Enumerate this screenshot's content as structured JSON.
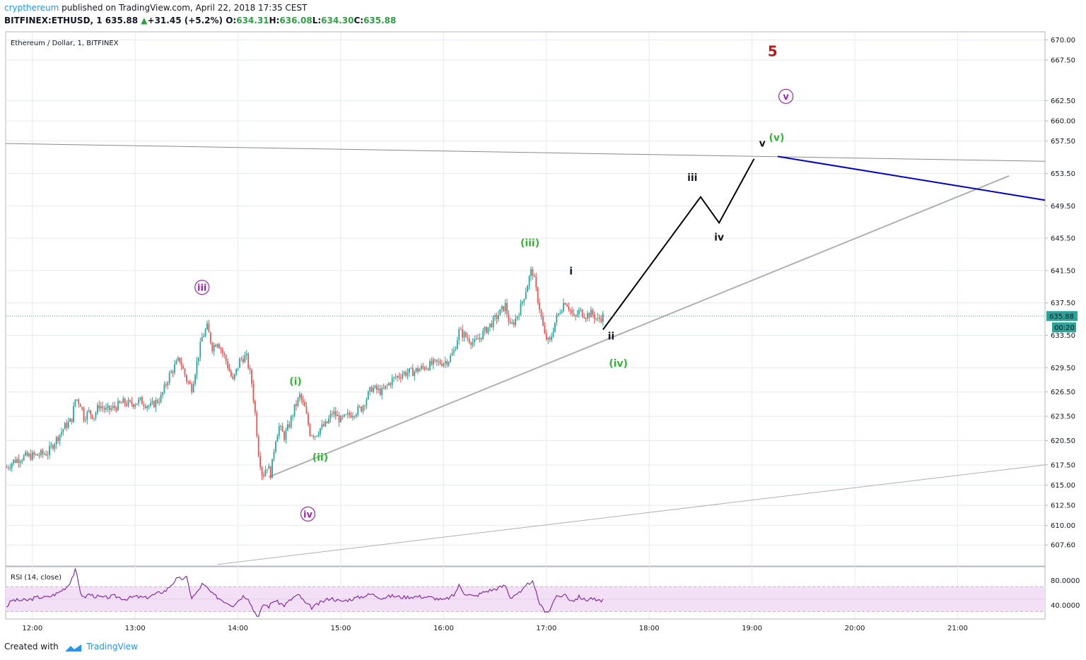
{
  "header": {
    "user": "crypthereum",
    "published_text": "published on TradingView.com, April 22, 2018 17:35 CEST",
    "symbol": "BITFINEX:ETHUSD, 1",
    "last": "635.88",
    "change": "+31.45 (+5.2%)",
    "open_label": "O:",
    "open": "634.31",
    "high_label": "H:",
    "high": "636.08",
    "low_label": "L:",
    "low": "634.30",
    "close_label": "C:",
    "close": "635.88"
  },
  "footer": {
    "created_with": "Created with",
    "brand": "TradingView"
  },
  "colors": {
    "up": "#26a69a",
    "down": "#ef5350",
    "grid": "#e6e9ef",
    "rsi_line": "#7b1fa2",
    "rsi_band": "#f3e0f7",
    "blue_line": "#0000cc",
    "trend_gray": "#b0b0b0",
    "last_price": "#26a69a",
    "wave_green": "#2eb82e",
    "wave_purple": "#9c27b0",
    "wave_red": "#b71c1c"
  },
  "chart_data": {
    "type": "candlestick",
    "title": "Ethereum / Dollar, 1, BITFINEX",
    "x_ticks": [
      "12:00",
      "13:00",
      "14:00",
      "15:00",
      "16:00",
      "17:00",
      "18:00",
      "19:00",
      "20:00",
      "21:00"
    ],
    "y_ticks": [
      "670.00",
      "667.50",
      "662.50",
      "660.00",
      "657.50",
      "653.50",
      "649.50",
      "645.50",
      "641.50",
      "637.50",
      "633.50",
      "629.50",
      "626.50",
      "623.50",
      "620.50",
      "617.50",
      "615.00",
      "612.50",
      "610.00",
      "607.60"
    ],
    "ylim": [
      605,
      671
    ],
    "xlim_hours": [
      11.74,
      21.85
    ],
    "last_price": 635.88,
    "countdown": "00:20",
    "price_path": [
      [
        11.75,
        617.2
      ],
      [
        11.82,
        618.0
      ],
      [
        11.92,
        618.5
      ],
      [
        12.05,
        618.7
      ],
      [
        12.15,
        619.0
      ],
      [
        12.25,
        621.0
      ],
      [
        12.32,
        622.3
      ],
      [
        12.38,
        623.0
      ],
      [
        12.42,
        625.8
      ],
      [
        12.47,
        625.0
      ],
      [
        12.5,
        623.4
      ],
      [
        12.55,
        624.0
      ],
      [
        12.6,
        623.5
      ],
      [
        12.65,
        624.9
      ],
      [
        12.72,
        624.2
      ],
      [
        12.8,
        624.6
      ],
      [
        12.88,
        625.2
      ],
      [
        12.95,
        625.0
      ],
      [
        13.05,
        625.4
      ],
      [
        13.15,
        624.7
      ],
      [
        13.25,
        625.8
      ],
      [
        13.33,
        628.5
      ],
      [
        13.43,
        630.6
      ],
      [
        13.5,
        628.0
      ],
      [
        13.55,
        627.0
      ],
      [
        13.6,
        630.1
      ],
      [
        13.65,
        633.2
      ],
      [
        13.7,
        634.5
      ],
      [
        13.75,
        632.0
      ],
      [
        13.8,
        632.8
      ],
      [
        13.88,
        630.5
      ],
      [
        13.95,
        627.8
      ],
      [
        14.02,
        630.5
      ],
      [
        14.08,
        630.9
      ],
      [
        14.13,
        628.0
      ],
      [
        14.17,
        623.5
      ],
      [
        14.2,
        619.0
      ],
      [
        14.24,
        616.0
      ],
      [
        14.28,
        617.5
      ],
      [
        14.32,
        616.3
      ],
      [
        14.36,
        620.5
      ],
      [
        14.4,
        622.2
      ],
      [
        14.45,
        621.0
      ],
      [
        14.5,
        622.5
      ],
      [
        14.55,
        624.5
      ],
      [
        14.6,
        626.0
      ],
      [
        14.65,
        624.5
      ],
      [
        14.7,
        621.5
      ],
      [
        14.75,
        621.2
      ],
      [
        14.8,
        622.0
      ],
      [
        14.86,
        622.5
      ],
      [
        14.92,
        624.0
      ],
      [
        15.0,
        623.0
      ],
      [
        15.1,
        623.8
      ],
      [
        15.2,
        624.5
      ],
      [
        15.3,
        627.0
      ],
      [
        15.4,
        626.5
      ],
      [
        15.5,
        628.0
      ],
      [
        15.6,
        628.8
      ],
      [
        15.7,
        629.0
      ],
      [
        15.8,
        629.5
      ],
      [
        15.9,
        630.0
      ],
      [
        16.0,
        630.2
      ],
      [
        16.05,
        630.5
      ],
      [
        16.1,
        631.5
      ],
      [
        16.15,
        634.0
      ],
      [
        16.2,
        633.5
      ],
      [
        16.3,
        632.5
      ],
      [
        16.4,
        634.0
      ],
      [
        16.5,
        635.5
      ],
      [
        16.6,
        637.2
      ],
      [
        16.65,
        634.5
      ],
      [
        16.7,
        635.5
      ],
      [
        16.75,
        637.0
      ],
      [
        16.82,
        640.0
      ],
      [
        16.86,
        641.8
      ],
      [
        16.9,
        639.0
      ],
      [
        16.94,
        636.5
      ],
      [
        16.98,
        633.5
      ],
      [
        17.03,
        632.5
      ],
      [
        17.08,
        635.0
      ],
      [
        17.13,
        636.5
      ],
      [
        17.18,
        637.8
      ],
      [
        17.22,
        637.0
      ],
      [
        17.27,
        635.5
      ],
      [
        17.32,
        636.5
      ],
      [
        17.38,
        636.0
      ],
      [
        17.44,
        636.2
      ],
      [
        17.5,
        635.4
      ],
      [
        17.55,
        635.88
      ]
    ],
    "lines": [
      {
        "name": "upper resistance",
        "from": [
          11.74,
          657.2
        ],
        "to": [
          21.85,
          655.0
        ]
      },
      {
        "name": "rising support",
        "from": [
          14.3,
          616.0
        ],
        "to": [
          21.5,
          653.2
        ]
      },
      {
        "name": "lower channel",
        "from": [
          13.8,
          605.2
        ],
        "to": [
          21.85,
          617.5
        ]
      },
      {
        "name": "blue projection",
        "from": [
          19.25,
          655.6
        ],
        "to": [
          21.85,
          650.2
        ]
      },
      {
        "name": "projection path",
        "points": [
          [
            17.55,
            634.2
          ],
          [
            18.5,
            650.6
          ],
          [
            18.68,
            647.4
          ],
          [
            19.02,
            655.3
          ]
        ]
      }
    ],
    "wave_labels": [
      {
        "text": "5",
        "x": 19.2,
        "y": 668.0,
        "color": "red",
        "size": 20
      },
      {
        "text": "v",
        "x": 19.33,
        "y": 662.6,
        "color": "purple",
        "circle": true,
        "size": 14
      },
      {
        "text": "iii",
        "x": 13.65,
        "y": 639.0,
        "color": "purple",
        "circle": true,
        "size": 14
      },
      {
        "text": "iv",
        "x": 14.68,
        "y": 611.0,
        "color": "purple",
        "circle": true,
        "size": 14
      },
      {
        "text": "(i)",
        "x": 14.56,
        "y": 627.4,
        "color": "green",
        "size": 14
      },
      {
        "text": "(ii)",
        "x": 14.8,
        "y": 618.0,
        "color": "green",
        "size": 14
      },
      {
        "text": "(iii)",
        "x": 16.84,
        "y": 644.5,
        "color": "green",
        "size": 14
      },
      {
        "text": "(iv)",
        "x": 17.7,
        "y": 629.6,
        "color": "green",
        "size": 14
      },
      {
        "text": "(v)",
        "x": 19.24,
        "y": 657.5,
        "color": "green",
        "size": 14
      },
      {
        "text": "i",
        "x": 17.24,
        "y": 641.0,
        "color": "black",
        "size": 14
      },
      {
        "text": "ii",
        "x": 17.63,
        "y": 633.0,
        "color": "black",
        "size": 14
      },
      {
        "text": "iii",
        "x": 18.42,
        "y": 652.6,
        "color": "black",
        "size": 14
      },
      {
        "text": "iv",
        "x": 18.68,
        "y": 645.2,
        "color": "black",
        "size": 14
      },
      {
        "text": "v",
        "x": 19.1,
        "y": 656.8,
        "color": "black",
        "size": 14
      }
    ],
    "rsi": {
      "label": "RSI (14, close)",
      "y_ticks": [
        "80.0000",
        "40.0000"
      ],
      "ylim": [
        18,
        102
      ],
      "band": [
        30,
        70
      ],
      "values": [
        [
          11.75,
          38
        ],
        [
          11.8,
          48
        ],
        [
          11.95,
          48
        ],
        [
          12.05,
          53
        ],
        [
          12.15,
          53
        ],
        [
          12.25,
          60
        ],
        [
          12.35,
          72
        ],
        [
          12.42,
          97
        ],
        [
          12.47,
          60
        ],
        [
          12.5,
          52
        ],
        [
          12.55,
          58
        ],
        [
          12.6,
          55
        ],
        [
          12.7,
          52
        ],
        [
          12.8,
          55
        ],
        [
          12.9,
          50
        ],
        [
          13.0,
          54
        ],
        [
          13.1,
          52
        ],
        [
          13.2,
          58
        ],
        [
          13.3,
          64
        ],
        [
          13.4,
          82
        ],
        [
          13.5,
          84
        ],
        [
          13.55,
          52
        ],
        [
          13.6,
          60
        ],
        [
          13.65,
          74
        ],
        [
          13.7,
          68
        ],
        [
          13.75,
          58
        ],
        [
          13.85,
          48
        ],
        [
          13.95,
          40
        ],
        [
          14.05,
          55
        ],
        [
          14.1,
          52
        ],
        [
          14.15,
          32
        ],
        [
          14.2,
          22
        ],
        [
          14.25,
          42
        ],
        [
          14.3,
          38
        ],
        [
          14.35,
          48
        ],
        [
          14.45,
          40
        ],
        [
          14.55,
          54
        ],
        [
          14.6,
          56
        ],
        [
          14.65,
          44
        ],
        [
          14.72,
          36
        ],
        [
          14.8,
          44
        ],
        [
          14.9,
          52
        ],
        [
          15.0,
          46
        ],
        [
          15.1,
          50
        ],
        [
          15.2,
          54
        ],
        [
          15.3,
          58
        ],
        [
          15.4,
          52
        ],
        [
          15.5,
          55
        ],
        [
          15.6,
          53
        ],
        [
          15.7,
          54
        ],
        [
          15.8,
          54
        ],
        [
          15.9,
          52
        ],
        [
          16.0,
          48
        ],
        [
          16.1,
          56
        ],
        [
          16.15,
          72
        ],
        [
          16.2,
          60
        ],
        [
          16.3,
          54
        ],
        [
          16.4,
          62
        ],
        [
          16.5,
          66
        ],
        [
          16.6,
          72
        ],
        [
          16.65,
          52
        ],
        [
          16.7,
          58
        ],
        [
          16.75,
          60
        ],
        [
          16.82,
          74
        ],
        [
          16.86,
          80
        ],
        [
          16.9,
          60
        ],
        [
          16.94,
          40
        ],
        [
          16.98,
          32
        ],
        [
          17.03,
          30
        ],
        [
          17.08,
          52
        ],
        [
          17.13,
          54
        ],
        [
          17.18,
          58
        ],
        [
          17.22,
          50
        ],
        [
          17.27,
          48
        ],
        [
          17.32,
          54
        ],
        [
          17.38,
          48
        ],
        [
          17.44,
          52
        ],
        [
          17.5,
          46
        ],
        [
          17.55,
          49
        ]
      ]
    }
  }
}
